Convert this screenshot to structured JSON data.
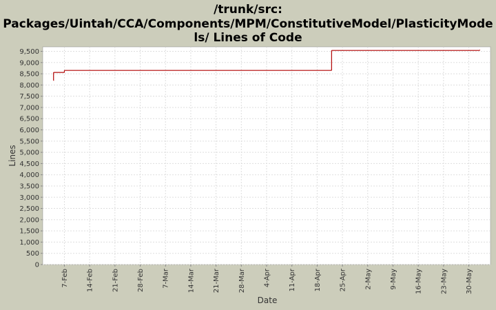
{
  "chart_data": {
    "type": "step",
    "title_lines": [
      "/trunk/src:",
      "Packages/Uintah/CCA/Components/MPM/ConstitutiveModel/PlasticityMode",
      "ls/ Lines of Code"
    ],
    "xlabel": "Date",
    "ylabel": "Lines",
    "x": [
      "4-Feb",
      "4-Feb",
      "7-Feb",
      "22-Apr",
      "2-Jun"
    ],
    "series": [
      {
        "name": "Lines of Code",
        "color": "#b00000",
        "values": [
          8200,
          8560,
          8650,
          9540,
          9560
        ]
      }
    ],
    "xlim": [
      "1-Feb",
      "5-Jun"
    ],
    "xticks": [
      "7-Feb",
      "14-Feb",
      "21-Feb",
      "28-Feb",
      "7-Mar",
      "14-Mar",
      "21-Mar",
      "28-Mar",
      "4-Apr",
      "11-Apr",
      "18-Apr",
      "25-Apr",
      "2-May",
      "9-May",
      "16-May",
      "23-May",
      "30-May"
    ],
    "ylim": [
      0,
      9700
    ],
    "yticks": [
      0,
      500,
      {
        "value": 1000,
        "label": "1,000"
      },
      {
        "value": 1500,
        "label": "1,500"
      },
      {
        "value": 2000,
        "label": "2,000"
      },
      {
        "value": 2500,
        "label": "2,500"
      },
      {
        "value": 3000,
        "label": "3,000"
      },
      {
        "value": 3500,
        "label": "3,500"
      },
      {
        "value": 4000,
        "label": "4,000"
      },
      {
        "value": 4500,
        "label": "4,500"
      },
      {
        "value": 5000,
        "label": "5,000"
      },
      {
        "value": 5500,
        "label": "5,500"
      },
      {
        "value": 6000,
        "label": "6,000"
      },
      {
        "value": 6500,
        "label": "6,500"
      },
      {
        "value": 7000,
        "label": "7,000"
      },
      {
        "value": 7500,
        "label": "7,500"
      },
      {
        "value": 8000,
        "label": "8,000"
      },
      {
        "value": 8500,
        "label": "8,500"
      },
      {
        "value": 9000,
        "label": "9,000"
      },
      {
        "value": 9500,
        "label": "9,500"
      }
    ],
    "grid": true
  }
}
